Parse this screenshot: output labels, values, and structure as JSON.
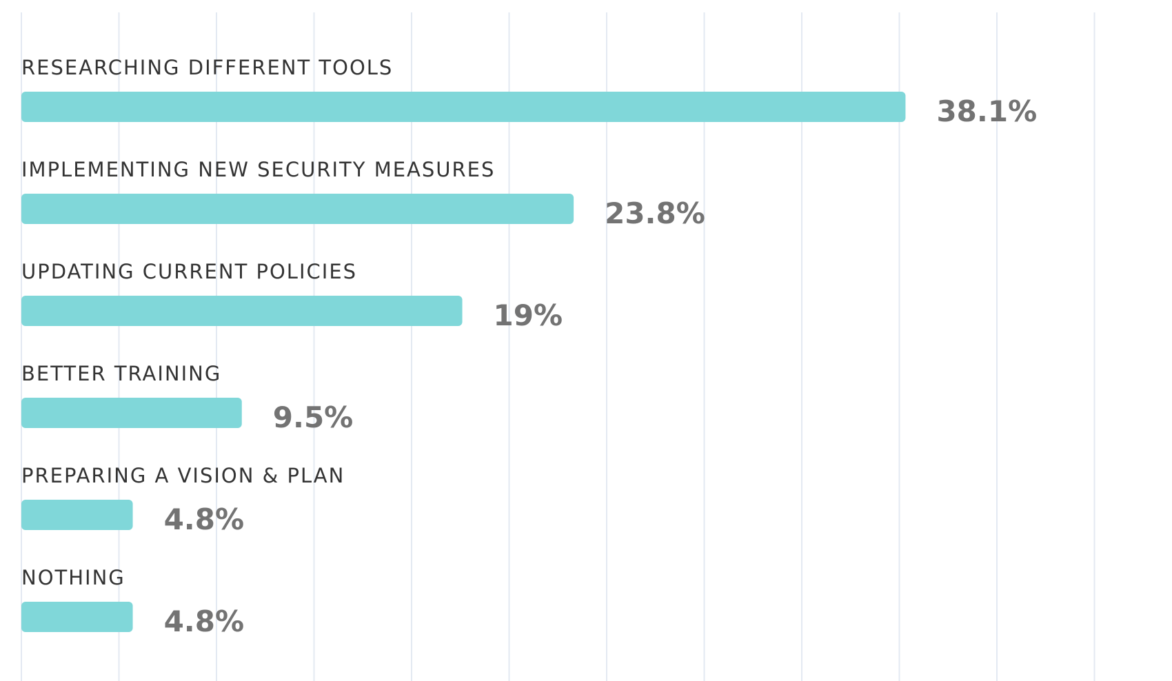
{
  "chart_data": {
    "type": "bar",
    "orientation": "horizontal",
    "categories": [
      "RESEARCHING DIFFERENT TOOLS",
      "IMPLEMENTING NEW SECURITY MEASURES",
      "UPDATING CURRENT POLICIES",
      "BETTER TRAINING",
      "PREPARING A VISION & PLAN",
      "NOTHING"
    ],
    "values": [
      38.1,
      23.8,
      19,
      9.5,
      4.8,
      4.8
    ],
    "value_labels": [
      "38.1%",
      "23.8%",
      "19%",
      "9.5%",
      "4.8%",
      "4.8%"
    ],
    "xlim": [
      0,
      47
    ],
    "grid": true,
    "legend": "none",
    "bar_color": "#80d7d9",
    "grid_color": "#e3e9f2"
  }
}
